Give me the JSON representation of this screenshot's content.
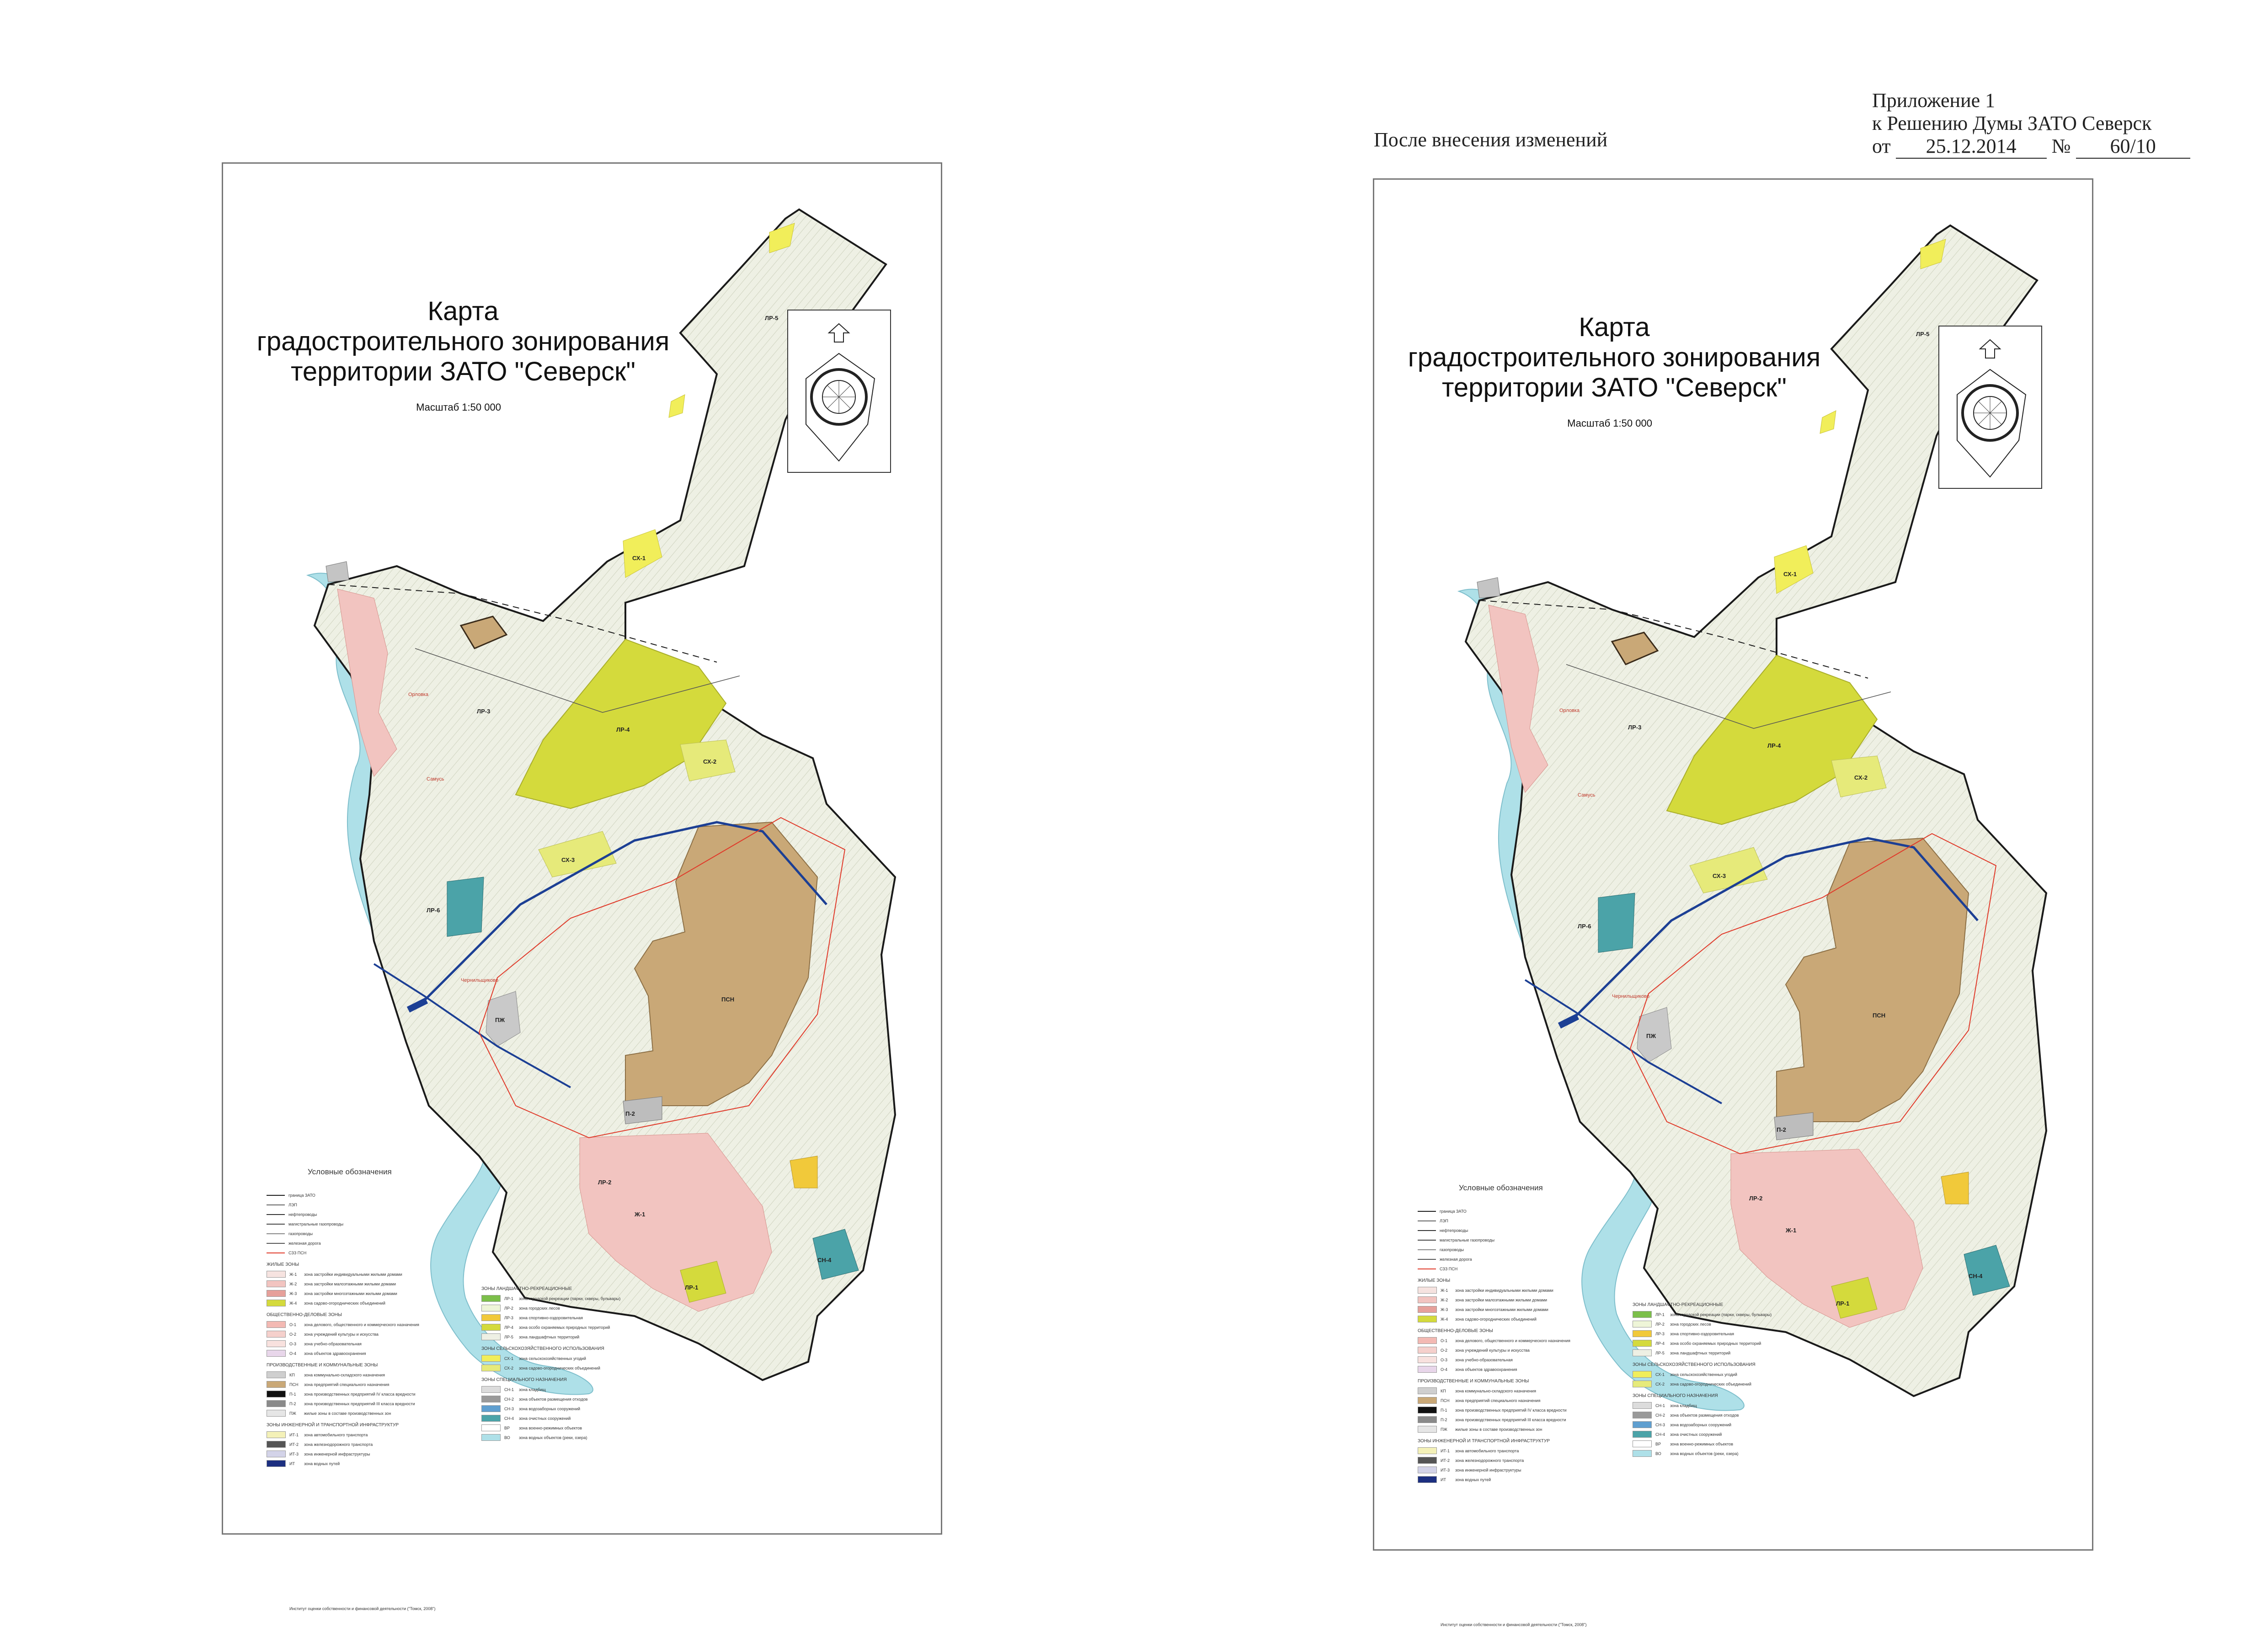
{
  "header": {
    "appendix_line1": "Приложение 1",
    "appendix_line2": "к Решению Думы ЗАТО Северск",
    "date_prefix": "от",
    "date": "25.12.2014",
    "number_prefix": "№",
    "number": "60/10",
    "after_change": "После внесения изменений"
  },
  "map": {
    "title_line1": "Карта",
    "title_line2": "градостроительного зонирования",
    "title_line3": "территории ЗАТО \"Северск\"",
    "scale": "Масштаб 1:50 000",
    "zone_labels": [
      "ЛР-5",
      "СХ-1",
      "ЛР-4",
      "ЛР-3",
      "СХ-2",
      "СХ-3",
      "ЛР-6",
      "ПСН",
      "ПЖ",
      "ЛР-2",
      "СН-4",
      "Ж-1",
      "ЛР-1",
      "П-2"
    ],
    "place_labels": [
      "Орловка",
      "Самусь",
      "Чернильщиково"
    ],
    "colors": {
      "forest": "#eef0e4",
      "forest_zone": "#d4da3c",
      "agri_yellow": "#f1ee5a",
      "industrial_brown": "#c9a877",
      "river": "#aee0e8",
      "special_teal": "#4ba3a8",
      "residential_pink": "#f2c4c0",
      "boundary": "#1a1a1a",
      "road": "#1c3f94",
      "red_boundary": "#e03a2a"
    }
  },
  "legend": {
    "title": "Условные обозначения",
    "footer": "Институт оценки собственности и финансовой деятельности (\"Томск, 2008\")",
    "lines": [
      {
        "label": "граница ЗАТО"
      },
      {
        "label": "ЛЭП"
      },
      {
        "label": "нефтепроводы"
      },
      {
        "label": "магистральные газопроводы"
      },
      {
        "label": "газопроводы"
      },
      {
        "label": "железная дорога"
      },
      {
        "label": "СЗЗ ПСН"
      }
    ],
    "groups_col1": [
      {
        "name": "ЖИЛЫЕ ЗОНЫ",
        "items": [
          {
            "code": "Ж-1",
            "label": "зона застройки индивидуальными жилыми домами"
          },
          {
            "code": "Ж-2",
            "label": "зона застройки малоэтажными жилыми домами"
          },
          {
            "code": "Ж-3",
            "label": "зона застройки многоэтажными жилыми домами"
          },
          {
            "code": "Ж-4",
            "label": "зона садово-огороднических объединений"
          }
        ]
      },
      {
        "name": "ОБЩЕСТВЕННО-ДЕЛОВЫЕ ЗОНЫ",
        "items": [
          {
            "code": "О-1",
            "label": "зона делового, общественного и коммерческого назначения"
          },
          {
            "code": "О-2",
            "label": "зона учреждений культуры и искусства"
          },
          {
            "code": "О-3",
            "label": "зона учебно-образовательная"
          },
          {
            "code": "О-4",
            "label": "зона объектов здравоохранения"
          }
        ]
      },
      {
        "name": "ПРОИЗВОДСТВЕННЫЕ И КОММУНАЛЬНЫЕ ЗОНЫ",
        "items": [
          {
            "code": "КП",
            "label": "зона коммунально-складского назначения"
          },
          {
            "code": "ПСН",
            "label": "зона предприятий специального назначения"
          },
          {
            "code": "П-1",
            "label": "зона производственных предприятий IV класса вредности"
          },
          {
            "code": "П-2",
            "label": "зона производственных предприятий III класса вредности"
          },
          {
            "code": "ПЖ",
            "label": "жилые зоны в составе производственных зон"
          }
        ]
      },
      {
        "name": "ЗОНЫ ИНЖЕНЕРНОЙ И ТРАНСПОРТНОЙ ИНФРАСТРУКТУР",
        "items": [
          {
            "code": "ИТ-1",
            "label": "зона автомобильного транспорта"
          },
          {
            "code": "ИТ-2",
            "label": "зона железнодорожного транспорта"
          },
          {
            "code": "ИТ-3",
            "label": "зона инженерной инфраструктуры"
          },
          {
            "code": "ИТ",
            "label": "зона водных путей"
          }
        ]
      }
    ],
    "groups_col2": [
      {
        "name": "ЗОНЫ ЛАНДШАФТНО-РЕКРЕАЦИОННЫЕ",
        "items": [
          {
            "code": "ЛР-1",
            "label": "зона городской рекреации (парки, скверы, бульвары)"
          },
          {
            "code": "ЛР-2",
            "label": "зона городских лесов"
          },
          {
            "code": "ЛР-3",
            "label": "зона спортивно-оздоровительная"
          },
          {
            "code": "ЛР-4",
            "label": "зона особо охраняемых природных территорий"
          },
          {
            "code": "ЛР-5",
            "label": "зона ландшафтных территорий"
          }
        ]
      },
      {
        "name": "ЗОНЫ СЕЛЬСКОХОЗЯЙСТВЕННОГО ИСПОЛЬЗОВАНИЯ",
        "items": [
          {
            "code": "СХ-1",
            "label": "зона сельскохозяйственных угодий"
          },
          {
            "code": "СХ-2",
            "label": "зона садово-огороднических объединений"
          }
        ]
      },
      {
        "name": "ЗОНЫ СПЕЦИАЛЬНОГО НАЗНАЧЕНИЯ",
        "items": [
          {
            "code": "СН-1",
            "label": "зона кладбищ"
          },
          {
            "code": "СН-2",
            "label": "зона объектов размещения отходов"
          },
          {
            "code": "СН-3",
            "label": "зона водозаборных сооружений"
          },
          {
            "code": "СН-4",
            "label": "зона очистных сооружений"
          },
          {
            "code": "ВР",
            "label": "зона военно-режимных объектов"
          },
          {
            "code": "ВО",
            "label": "зона водных объектов (реки, озера)"
          }
        ]
      }
    ]
  }
}
